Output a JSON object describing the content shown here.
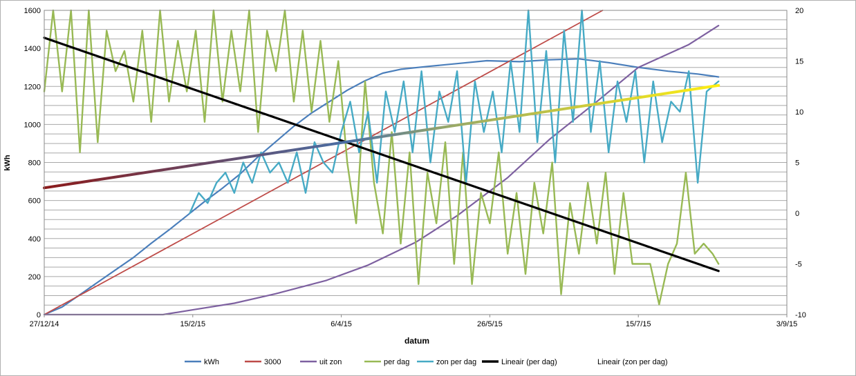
{
  "chart_data": {
    "type": "line",
    "xlabel": "datum",
    "ylabel": "kWh",
    "x_ticks": [
      "27/12/14",
      "15/2/15",
      "6/4/15",
      "26/5/15",
      "15/7/15",
      "3/9/15"
    ],
    "x_range": [
      "2014-12-27",
      "2015-09-03"
    ],
    "ylim": [
      0,
      1600
    ],
    "y_ticks": [
      0,
      200,
      400,
      600,
      800,
      1000,
      1200,
      1400,
      1600
    ],
    "y2lim": [
      -10,
      20
    ],
    "y2_ticks": [
      -10,
      -5,
      0,
      5,
      10,
      15,
      20
    ],
    "grid": true,
    "legend_position": "bottom",
    "legend": [
      "kWh",
      "3000",
      "uit zon",
      "per dag",
      "zon per dag",
      "Lineair (per dag)",
      "Lineair (zon per dag)"
    ],
    "colors": {
      "kWh": "#4a7ebb",
      "3000": "#be4b48",
      "uit zon": "#7d60a0",
      "per dag": "#98b954",
      "zon per dag": "#46aac5",
      "Lineair (per dag)": "#000000",
      "trend_sun_start": "#8b1a1a",
      "trend_sun_mid": "#4a6fa5",
      "trend_sun_end": "#ffee11"
    },
    "series": [
      {
        "name": "kWh",
        "axis": "left",
        "points": [
          [
            "2014-12-27",
            0
          ],
          [
            "2015-01-02",
            40
          ],
          [
            "2015-01-08",
            105
          ],
          [
            "2015-01-14",
            170
          ],
          [
            "2015-01-20",
            235
          ],
          [
            "2015-01-26",
            300
          ],
          [
            "2015-02-01",
            375
          ],
          [
            "2015-02-07",
            445
          ],
          [
            "2015-02-13",
            520
          ],
          [
            "2015-02-19",
            595
          ],
          [
            "2015-02-25",
            665
          ],
          [
            "2015-03-03",
            740
          ],
          [
            "2015-03-09",
            830
          ],
          [
            "2015-03-15",
            910
          ],
          [
            "2015-03-21",
            990
          ],
          [
            "2015-03-27",
            1060
          ],
          [
            "2015-04-02",
            1120
          ],
          [
            "2015-04-08",
            1180
          ],
          [
            "2015-04-14",
            1230
          ],
          [
            "2015-04-20",
            1270
          ],
          [
            "2015-04-26",
            1290
          ],
          [
            "2015-05-05",
            1305
          ],
          [
            "2015-05-15",
            1320
          ],
          [
            "2015-05-25",
            1335
          ],
          [
            "2015-06-05",
            1330
          ],
          [
            "2015-06-15",
            1340
          ],
          [
            "2015-06-25",
            1345
          ],
          [
            "2015-07-05",
            1325
          ],
          [
            "2015-07-15",
            1300
          ],
          [
            "2015-07-25",
            1280
          ],
          [
            "2015-08-04",
            1265
          ],
          [
            "2015-08-11",
            1250
          ]
        ]
      },
      {
        "name": "3000",
        "axis": "left",
        "points": [
          [
            "2014-12-27",
            0
          ],
          [
            "2015-07-03",
            1600
          ]
        ]
      },
      {
        "name": "uit zon",
        "axis": "left",
        "points": [
          [
            "2014-12-27",
            0
          ],
          [
            "2015-02-05",
            0
          ],
          [
            "2015-02-15",
            25
          ],
          [
            "2015-03-01",
            60
          ],
          [
            "2015-03-15",
            110
          ],
          [
            "2015-04-01",
            180
          ],
          [
            "2015-04-15",
            260
          ],
          [
            "2015-05-01",
            380
          ],
          [
            "2015-05-15",
            520
          ],
          [
            "2015-06-01",
            720
          ],
          [
            "2015-06-15",
            920
          ],
          [
            "2015-07-01",
            1120
          ],
          [
            "2015-07-15",
            1300
          ],
          [
            "2015-08-01",
            1420
          ],
          [
            "2015-08-11",
            1520
          ]
        ]
      },
      {
        "name": "per dag",
        "axis": "right",
        "points": [
          [
            "2014-12-27",
            12
          ],
          [
            "2014-12-30",
            20
          ],
          [
            "2015-01-02",
            12
          ],
          [
            "2015-01-05",
            20
          ],
          [
            "2015-01-08",
            6
          ],
          [
            "2015-01-11",
            20
          ],
          [
            "2015-01-14",
            7
          ],
          [
            "2015-01-17",
            18
          ],
          [
            "2015-01-20",
            14
          ],
          [
            "2015-01-23",
            16
          ],
          [
            "2015-01-26",
            11
          ],
          [
            "2015-01-29",
            18
          ],
          [
            "2015-02-01",
            9
          ],
          [
            "2015-02-04",
            20
          ],
          [
            "2015-02-07",
            11
          ],
          [
            "2015-02-10",
            17
          ],
          [
            "2015-02-13",
            12
          ],
          [
            "2015-02-16",
            18
          ],
          [
            "2015-02-19",
            9
          ],
          [
            "2015-02-22",
            20
          ],
          [
            "2015-02-25",
            11
          ],
          [
            "2015-02-28",
            18
          ],
          [
            "2015-03-03",
            12
          ],
          [
            "2015-03-06",
            20
          ],
          [
            "2015-03-09",
            8
          ],
          [
            "2015-03-12",
            18
          ],
          [
            "2015-03-15",
            14
          ],
          [
            "2015-03-18",
            20
          ],
          [
            "2015-03-21",
            11
          ],
          [
            "2015-03-24",
            18
          ],
          [
            "2015-03-27",
            10
          ],
          [
            "2015-03-30",
            17
          ],
          [
            "2015-04-02",
            9
          ],
          [
            "2015-04-05",
            15
          ],
          [
            "2015-04-08",
            5
          ],
          [
            "2015-04-11",
            -1
          ],
          [
            "2015-04-14",
            13
          ],
          [
            "2015-04-17",
            3
          ],
          [
            "2015-04-20",
            -2
          ],
          [
            "2015-04-23",
            8
          ],
          [
            "2015-04-26",
            -3
          ],
          [
            "2015-04-29",
            6
          ],
          [
            "2015-05-02",
            -7
          ],
          [
            "2015-05-05",
            4
          ],
          [
            "2015-05-08",
            -1
          ],
          [
            "2015-05-11",
            7
          ],
          [
            "2015-05-14",
            -5
          ],
          [
            "2015-05-17",
            6
          ],
          [
            "2015-05-20",
            -7
          ],
          [
            "2015-05-23",
            2
          ],
          [
            "2015-05-26",
            -1
          ],
          [
            "2015-05-29",
            6
          ],
          [
            "2015-06-01",
            -4
          ],
          [
            "2015-06-04",
            2
          ],
          [
            "2015-06-07",
            -6
          ],
          [
            "2015-06-10",
            3
          ],
          [
            "2015-06-13",
            -2
          ],
          [
            "2015-06-16",
            5
          ],
          [
            "2015-06-19",
            -8
          ],
          [
            "2015-06-22",
            1
          ],
          [
            "2015-06-25",
            -4
          ],
          [
            "2015-06-28",
            3
          ],
          [
            "2015-07-01",
            -3
          ],
          [
            "2015-07-04",
            4
          ],
          [
            "2015-07-07",
            -6
          ],
          [
            "2015-07-10",
            2
          ],
          [
            "2015-07-13",
            -5
          ],
          [
            "2015-07-16",
            -5
          ],
          [
            "2015-07-19",
            -5
          ],
          [
            "2015-07-22",
            -9
          ],
          [
            "2015-07-25",
            -5
          ],
          [
            "2015-07-28",
            -3
          ],
          [
            "2015-07-31",
            4
          ],
          [
            "2015-08-03",
            -4
          ],
          [
            "2015-08-06",
            -3
          ],
          [
            "2015-08-09",
            -4
          ],
          [
            "2015-08-11",
            -5
          ]
        ]
      },
      {
        "name": "zon per dag",
        "axis": "right",
        "points": [
          [
            "2015-02-14",
            0
          ],
          [
            "2015-02-17",
            2
          ],
          [
            "2015-02-20",
            1
          ],
          [
            "2015-02-23",
            3
          ],
          [
            "2015-02-26",
            4
          ],
          [
            "2015-03-01",
            2
          ],
          [
            "2015-03-04",
            5
          ],
          [
            "2015-03-07",
            3
          ],
          [
            "2015-03-10",
            6
          ],
          [
            "2015-03-13",
            4
          ],
          [
            "2015-03-16",
            5
          ],
          [
            "2015-03-19",
            3
          ],
          [
            "2015-03-22",
            6
          ],
          [
            "2015-03-25",
            2
          ],
          [
            "2015-03-28",
            7
          ],
          [
            "2015-03-31",
            5
          ],
          [
            "2015-04-03",
            4
          ],
          [
            "2015-04-06",
            8
          ],
          [
            "2015-04-09",
            11
          ],
          [
            "2015-04-12",
            6
          ],
          [
            "2015-04-15",
            10
          ],
          [
            "2015-04-18",
            3
          ],
          [
            "2015-04-21",
            12
          ],
          [
            "2015-04-24",
            8
          ],
          [
            "2015-04-27",
            13
          ],
          [
            "2015-04-30",
            6
          ],
          [
            "2015-05-03",
            14
          ],
          [
            "2015-05-06",
            5
          ],
          [
            "2015-05-09",
            12
          ],
          [
            "2015-05-12",
            9
          ],
          [
            "2015-05-15",
            14
          ],
          [
            "2015-05-18",
            3
          ],
          [
            "2015-05-21",
            13
          ],
          [
            "2015-05-24",
            8
          ],
          [
            "2015-05-27",
            12
          ],
          [
            "2015-05-30",
            6
          ],
          [
            "2015-06-02",
            15
          ],
          [
            "2015-06-05",
            8
          ],
          [
            "2015-06-08",
            20
          ],
          [
            "2015-06-11",
            7
          ],
          [
            "2015-06-14",
            16
          ],
          [
            "2015-06-17",
            5
          ],
          [
            "2015-06-20",
            18
          ],
          [
            "2015-06-23",
            9
          ],
          [
            "2015-06-26",
            20
          ],
          [
            "2015-06-29",
            8
          ],
          [
            "2015-07-02",
            15
          ],
          [
            "2015-07-05",
            6
          ],
          [
            "2015-07-08",
            13
          ],
          [
            "2015-07-11",
            9
          ],
          [
            "2015-07-14",
            14
          ],
          [
            "2015-07-17",
            5
          ],
          [
            "2015-07-20",
            13
          ],
          [
            "2015-07-23",
            7
          ],
          [
            "2015-07-26",
            11
          ],
          [
            "2015-07-29",
            10
          ],
          [
            "2015-08-01",
            14
          ],
          [
            "2015-08-04",
            3
          ],
          [
            "2015-08-07",
            12
          ],
          [
            "2015-08-11",
            13
          ]
        ]
      },
      {
        "name": "Lineair (per dag)",
        "axis": "right",
        "points": [
          [
            "2014-12-27",
            17.3
          ],
          [
            "2015-08-11",
            -5.7
          ]
        ]
      },
      {
        "name": "Lineair (zon per dag)",
        "axis": "right",
        "points": [
          [
            "2014-12-27",
            2.5
          ],
          [
            "2015-08-11",
            12.6
          ]
        ]
      }
    ]
  }
}
